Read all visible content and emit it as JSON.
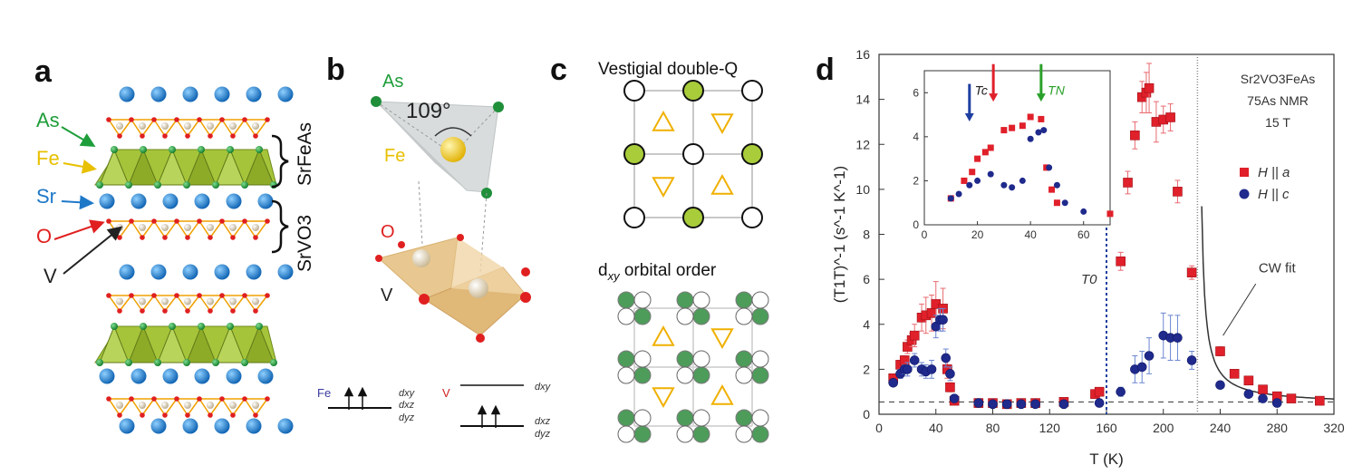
{
  "panels": {
    "a": {
      "label": "a",
      "atoms": [
        "As",
        "Fe",
        "Sr",
        "O",
        "V"
      ],
      "layers": [
        "SrFeAs",
        "SrVO3"
      ],
      "colors": {
        "As": "#1e9e3a",
        "Fe": "#e8c000",
        "Sr": "#1e78c8",
        "O": "#e02020",
        "V": "#222222"
      }
    },
    "b": {
      "label": "b",
      "atoms": [
        "As",
        "Fe",
        "O",
        "V"
      ],
      "angle": "109°",
      "fe_level": {
        "element": "Fe",
        "orbitals": [
          "dxy",
          "dxz",
          "dyz"
        ]
      },
      "v_levels": {
        "element": "V",
        "upper": "dxy",
        "lower": [
          "dxz",
          "dyz"
        ]
      }
    },
    "c": {
      "label": "c",
      "top_title": "Vestigial double-Q",
      "bottom_title_prefix": "d",
      "bottom_title_sub": "xy",
      "bottom_title_suffix": " orbital order"
    },
    "d": {
      "label": "d"
    }
  },
  "chart_data": {
    "type": "scatter",
    "xlabel": "T (K)",
    "ylabel": "(T1T)^-1 (s^-1 K^-1)",
    "xlim": [
      0,
      320
    ],
    "ylim": [
      0,
      16
    ],
    "xticks": [
      0,
      40,
      80,
      120,
      160,
      200,
      240,
      280,
      320
    ],
    "yticks": [
      0,
      2,
      4,
      6,
      8,
      10,
      12,
      14,
      16
    ],
    "legend_title": [
      "Sr2VO3FeAs",
      "75As NMR",
      "15 T"
    ],
    "legend_position": "top-right",
    "annotations": {
      "T0": "T0",
      "T0_x": 160,
      "cw": "CW fit",
      "vline_x": 224,
      "baseline_y": 0.55
    },
    "series": [
      {
        "name": "H || a",
        "color": "#e0202a",
        "marker": "square",
        "x": [
          10,
          15,
          18,
          20,
          23,
          25,
          30,
          33,
          37,
          40,
          45,
          48,
          50,
          53,
          70,
          80,
          90,
          100,
          110,
          130,
          152,
          155,
          170,
          175,
          180,
          185,
          188,
          190,
          195,
          200,
          205,
          210,
          220,
          240,
          250,
          260,
          270,
          280,
          290,
          310
        ],
        "y": [
          1.6,
          2.2,
          2.4,
          3.0,
          3.3,
          3.5,
          4.3,
          4.4,
          4.5,
          4.9,
          4.7,
          2.0,
          1.2,
          0.6,
          0.5,
          0.5,
          0.45,
          0.5,
          0.5,
          0.55,
          0.9,
          1.0,
          6.8,
          10.3,
          12.4,
          14.1,
          14.3,
          14.5,
          13.0,
          13.1,
          13.2,
          9.9,
          6.3,
          2.8,
          1.8,
          1.5,
          1.1,
          0.8,
          0.7,
          0.6
        ],
        "err": [
          0.1,
          0.2,
          0.2,
          0.3,
          0.3,
          0.5,
          0.6,
          0.8,
          0.8,
          1.0,
          0.9,
          0.4,
          0.2,
          0.1,
          0.05,
          0.05,
          0.05,
          0.05,
          0.05,
          0.05,
          0.1,
          0.1,
          0.4,
          0.5,
          0.6,
          0.7,
          0.9,
          1.1,
          0.9,
          0.6,
          0.6,
          0.5,
          0.3,
          0.2,
          0.1,
          0.1,
          0.1,
          0.05,
          0.05,
          0.05
        ]
      },
      {
        "name": "H || c",
        "color": "#1f2a8c",
        "marker": "circle",
        "x": [
          10,
          15,
          18,
          20,
          25,
          30,
          33,
          37,
          40,
          43,
          45,
          47,
          50,
          53,
          70,
          80,
          90,
          100,
          110,
          130,
          155,
          170,
          180,
          185,
          190,
          200,
          205,
          210,
          220,
          240,
          260,
          270,
          280
        ],
        "y": [
          1.4,
          1.8,
          2.0,
          2.0,
          2.4,
          2.0,
          1.9,
          2.0,
          3.9,
          4.2,
          4.2,
          2.5,
          1.8,
          0.7,
          0.5,
          0.45,
          0.45,
          0.45,
          0.45,
          0.45,
          0.5,
          1.0,
          2.0,
          2.1,
          2.6,
          3.5,
          3.4,
          3.4,
          2.4,
          1.3,
          0.9,
          0.7,
          0.5
        ],
        "err": [
          0.1,
          0.2,
          0.2,
          0.3,
          0.3,
          0.3,
          0.3,
          0.4,
          0.5,
          0.5,
          0.5,
          0.4,
          0.3,
          0.1,
          0.05,
          0.05,
          0.05,
          0.05,
          0.05,
          0.05,
          0.05,
          0.2,
          0.6,
          0.7,
          0.8,
          1.0,
          1.0,
          1.0,
          0.4,
          0.1,
          0.1,
          0.05,
          0.05
        ]
      }
    ],
    "inset": {
      "xlim": [
        0,
        70
      ],
      "ylim": [
        0,
        7
      ],
      "xticks": [
        0,
        20,
        40,
        60
      ],
      "yticks": [
        0,
        2,
        4,
        6
      ],
      "labels": {
        "Tc": "Tc",
        "TN": "TN"
      },
      "arrows": [
        {
          "x": 17,
          "color": "#1f3fa0"
        },
        {
          "x": 26,
          "color": "#e0202a"
        },
        {
          "x": 44,
          "color": "#2aa02a"
        }
      ],
      "series": [
        {
          "name": "H || a",
          "x": [
            10,
            15,
            18,
            20,
            23,
            25,
            30,
            33,
            37,
            40,
            44,
            46,
            48,
            50,
            70
          ],
          "y": [
            1.2,
            2.0,
            2.4,
            3.0,
            3.3,
            3.5,
            4.3,
            4.4,
            4.5,
            4.9,
            4.8,
            2.6,
            1.6,
            1.0,
            0.5
          ]
        },
        {
          "name": "H || c",
          "x": [
            10,
            13,
            17,
            20,
            25,
            30,
            33,
            37,
            40,
            43,
            45,
            47,
            50,
            53,
            60
          ],
          "y": [
            1.2,
            1.4,
            1.8,
            2.0,
            2.3,
            1.8,
            1.7,
            2.0,
            3.9,
            4.2,
            4.3,
            2.6,
            1.8,
            1.0,
            0.6
          ]
        }
      ]
    }
  }
}
